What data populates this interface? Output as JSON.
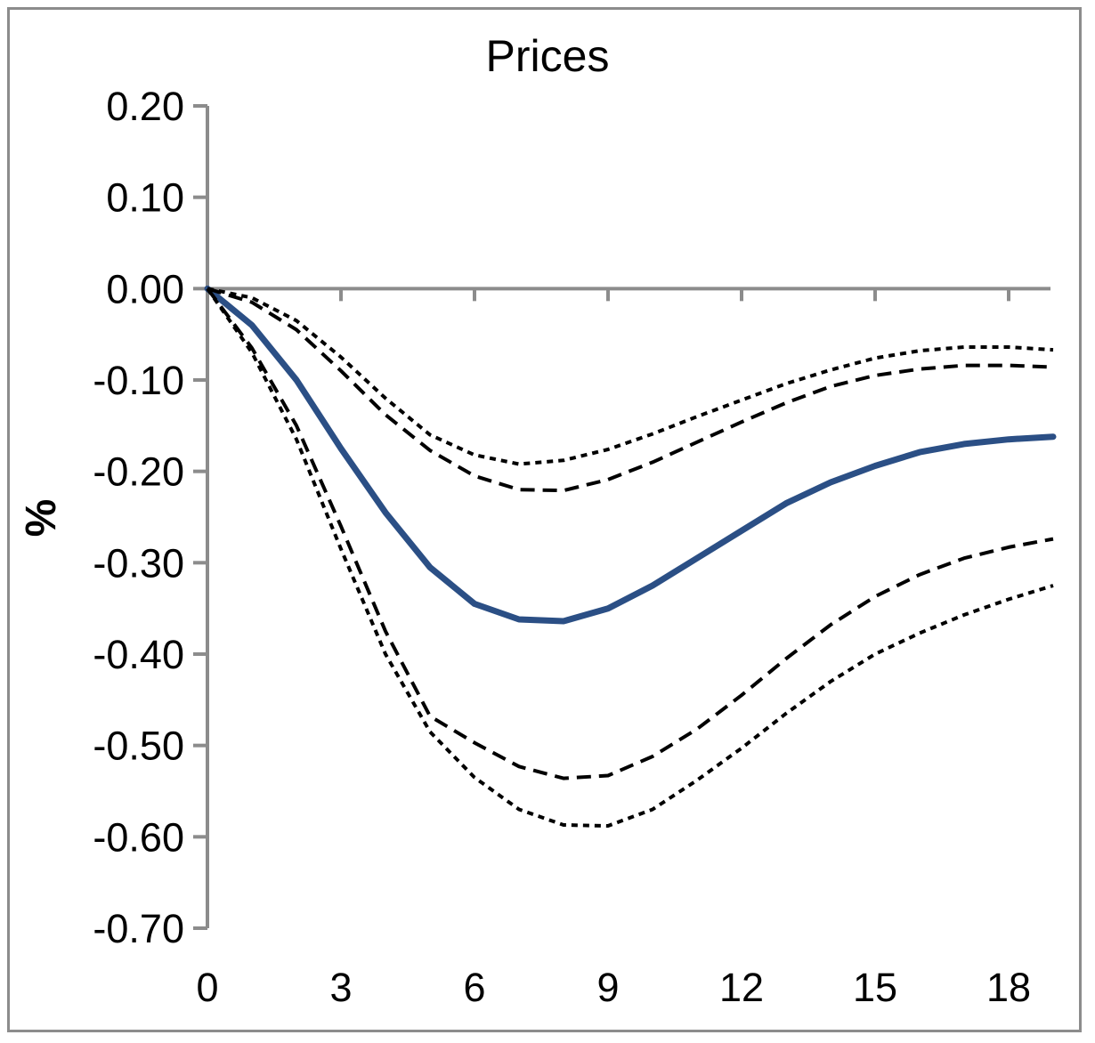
{
  "chart_data": {
    "type": "line",
    "title": "Prices",
    "xlabel": "",
    "ylabel": "%",
    "xlim": [
      0,
      19
    ],
    "ylim": [
      -0.7,
      0.2
    ],
    "x_ticks": [
      "0",
      "3",
      "6",
      "9",
      "12",
      "15",
      "18"
    ],
    "y_ticks": [
      "0.20",
      "0.10",
      "0.00",
      "-0.10",
      "-0.20",
      "-0.30",
      "-0.40",
      "-0.50",
      "-0.60",
      "-0.70"
    ],
    "x": [
      0,
      1,
      2,
      3,
      4,
      5,
      6,
      7,
      8,
      9,
      10,
      11,
      12,
      13,
      14,
      15,
      16,
      17,
      18,
      19
    ],
    "series": [
      {
        "style": "solid",
        "color": "#2b4f85",
        "values": [
          0.0,
          -0.04,
          -0.1,
          -0.175,
          -0.245,
          -0.305,
          -0.345,
          -0.362,
          -0.364,
          -0.35,
          -0.325,
          -0.295,
          -0.265,
          -0.235,
          -0.212,
          -0.194,
          -0.179,
          -0.17,
          -0.165,
          -0.162
        ]
      },
      {
        "style": "dashed",
        "color": "#000000",
        "values": [
          0.0,
          -0.015,
          -0.045,
          -0.09,
          -0.138,
          -0.177,
          -0.205,
          -0.22,
          -0.221,
          -0.209,
          -0.19,
          -0.168,
          -0.146,
          -0.125,
          -0.107,
          -0.095,
          -0.088,
          -0.084,
          -0.084,
          -0.086
        ]
      },
      {
        "style": "dotted",
        "color": "#000000",
        "values": [
          0.0,
          -0.01,
          -0.035,
          -0.075,
          -0.12,
          -0.16,
          -0.182,
          -0.192,
          -0.188,
          -0.176,
          -0.159,
          -0.14,
          -0.122,
          -0.104,
          -0.089,
          -0.076,
          -0.068,
          -0.064,
          -0.064,
          -0.067
        ]
      },
      {
        "style": "dashed",
        "color": "#000000",
        "values": [
          0.0,
          -0.065,
          -0.15,
          -0.26,
          -0.375,
          -0.468,
          -0.497,
          -0.523,
          -0.536,
          -0.533,
          -0.512,
          -0.482,
          -0.445,
          -0.405,
          -0.368,
          -0.337,
          -0.313,
          -0.295,
          -0.283,
          -0.274
        ]
      },
      {
        "style": "dotted",
        "color": "#000000",
        "values": [
          0.0,
          -0.07,
          -0.165,
          -0.285,
          -0.4,
          -0.485,
          -0.535,
          -0.57,
          -0.587,
          -0.588,
          -0.57,
          -0.538,
          -0.503,
          -0.465,
          -0.43,
          -0.4,
          -0.377,
          -0.357,
          -0.34,
          -0.325
        ]
      }
    ]
  }
}
